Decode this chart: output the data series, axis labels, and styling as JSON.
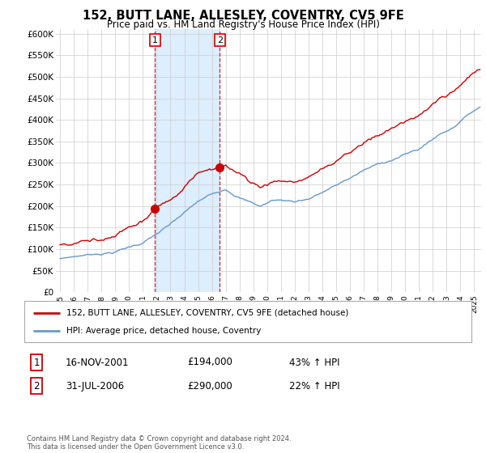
{
  "title": "152, BUTT LANE, ALLESLEY, COVENTRY, CV5 9FE",
  "subtitle": "Price paid vs. HM Land Registry's House Price Index (HPI)",
  "ylabel_ticks": [
    "£0",
    "£50K",
    "£100K",
    "£150K",
    "£200K",
    "£250K",
    "£300K",
    "£350K",
    "£400K",
    "£450K",
    "£500K",
    "£550K",
    "£600K"
  ],
  "ytick_values": [
    0,
    50000,
    100000,
    150000,
    200000,
    250000,
    300000,
    350000,
    400000,
    450000,
    500000,
    550000,
    600000
  ],
  "ylim": [
    0,
    610000
  ],
  "xlim_start": 1994.7,
  "xlim_end": 2025.5,
  "purchase1_date": 2001.88,
  "purchase1_price": 194000,
  "purchase1_label": "1",
  "purchase2_date": 2006.58,
  "purchase2_price": 290000,
  "purchase2_label": "2",
  "legend_line1": "152, BUTT LANE, ALLESLEY, COVENTRY, CV5 9FE (detached house)",
  "legend_line2": "HPI: Average price, detached house, Coventry",
  "table_row1_num": "1",
  "table_row1_date": "16-NOV-2001",
  "table_row1_price": "£194,000",
  "table_row1_hpi": "43% ↑ HPI",
  "table_row2_num": "2",
  "table_row2_date": "31-JUL-2006",
  "table_row2_price": "£290,000",
  "table_row2_hpi": "22% ↑ HPI",
  "footer": "Contains HM Land Registry data © Crown copyright and database right 2024.\nThis data is licensed under the Open Government Licence v3.0.",
  "red_color": "#cc0000",
  "blue_color": "#6699cc",
  "shade_color": "#ddeeff",
  "background_color": "#ffffff",
  "grid_color": "#cccccc"
}
